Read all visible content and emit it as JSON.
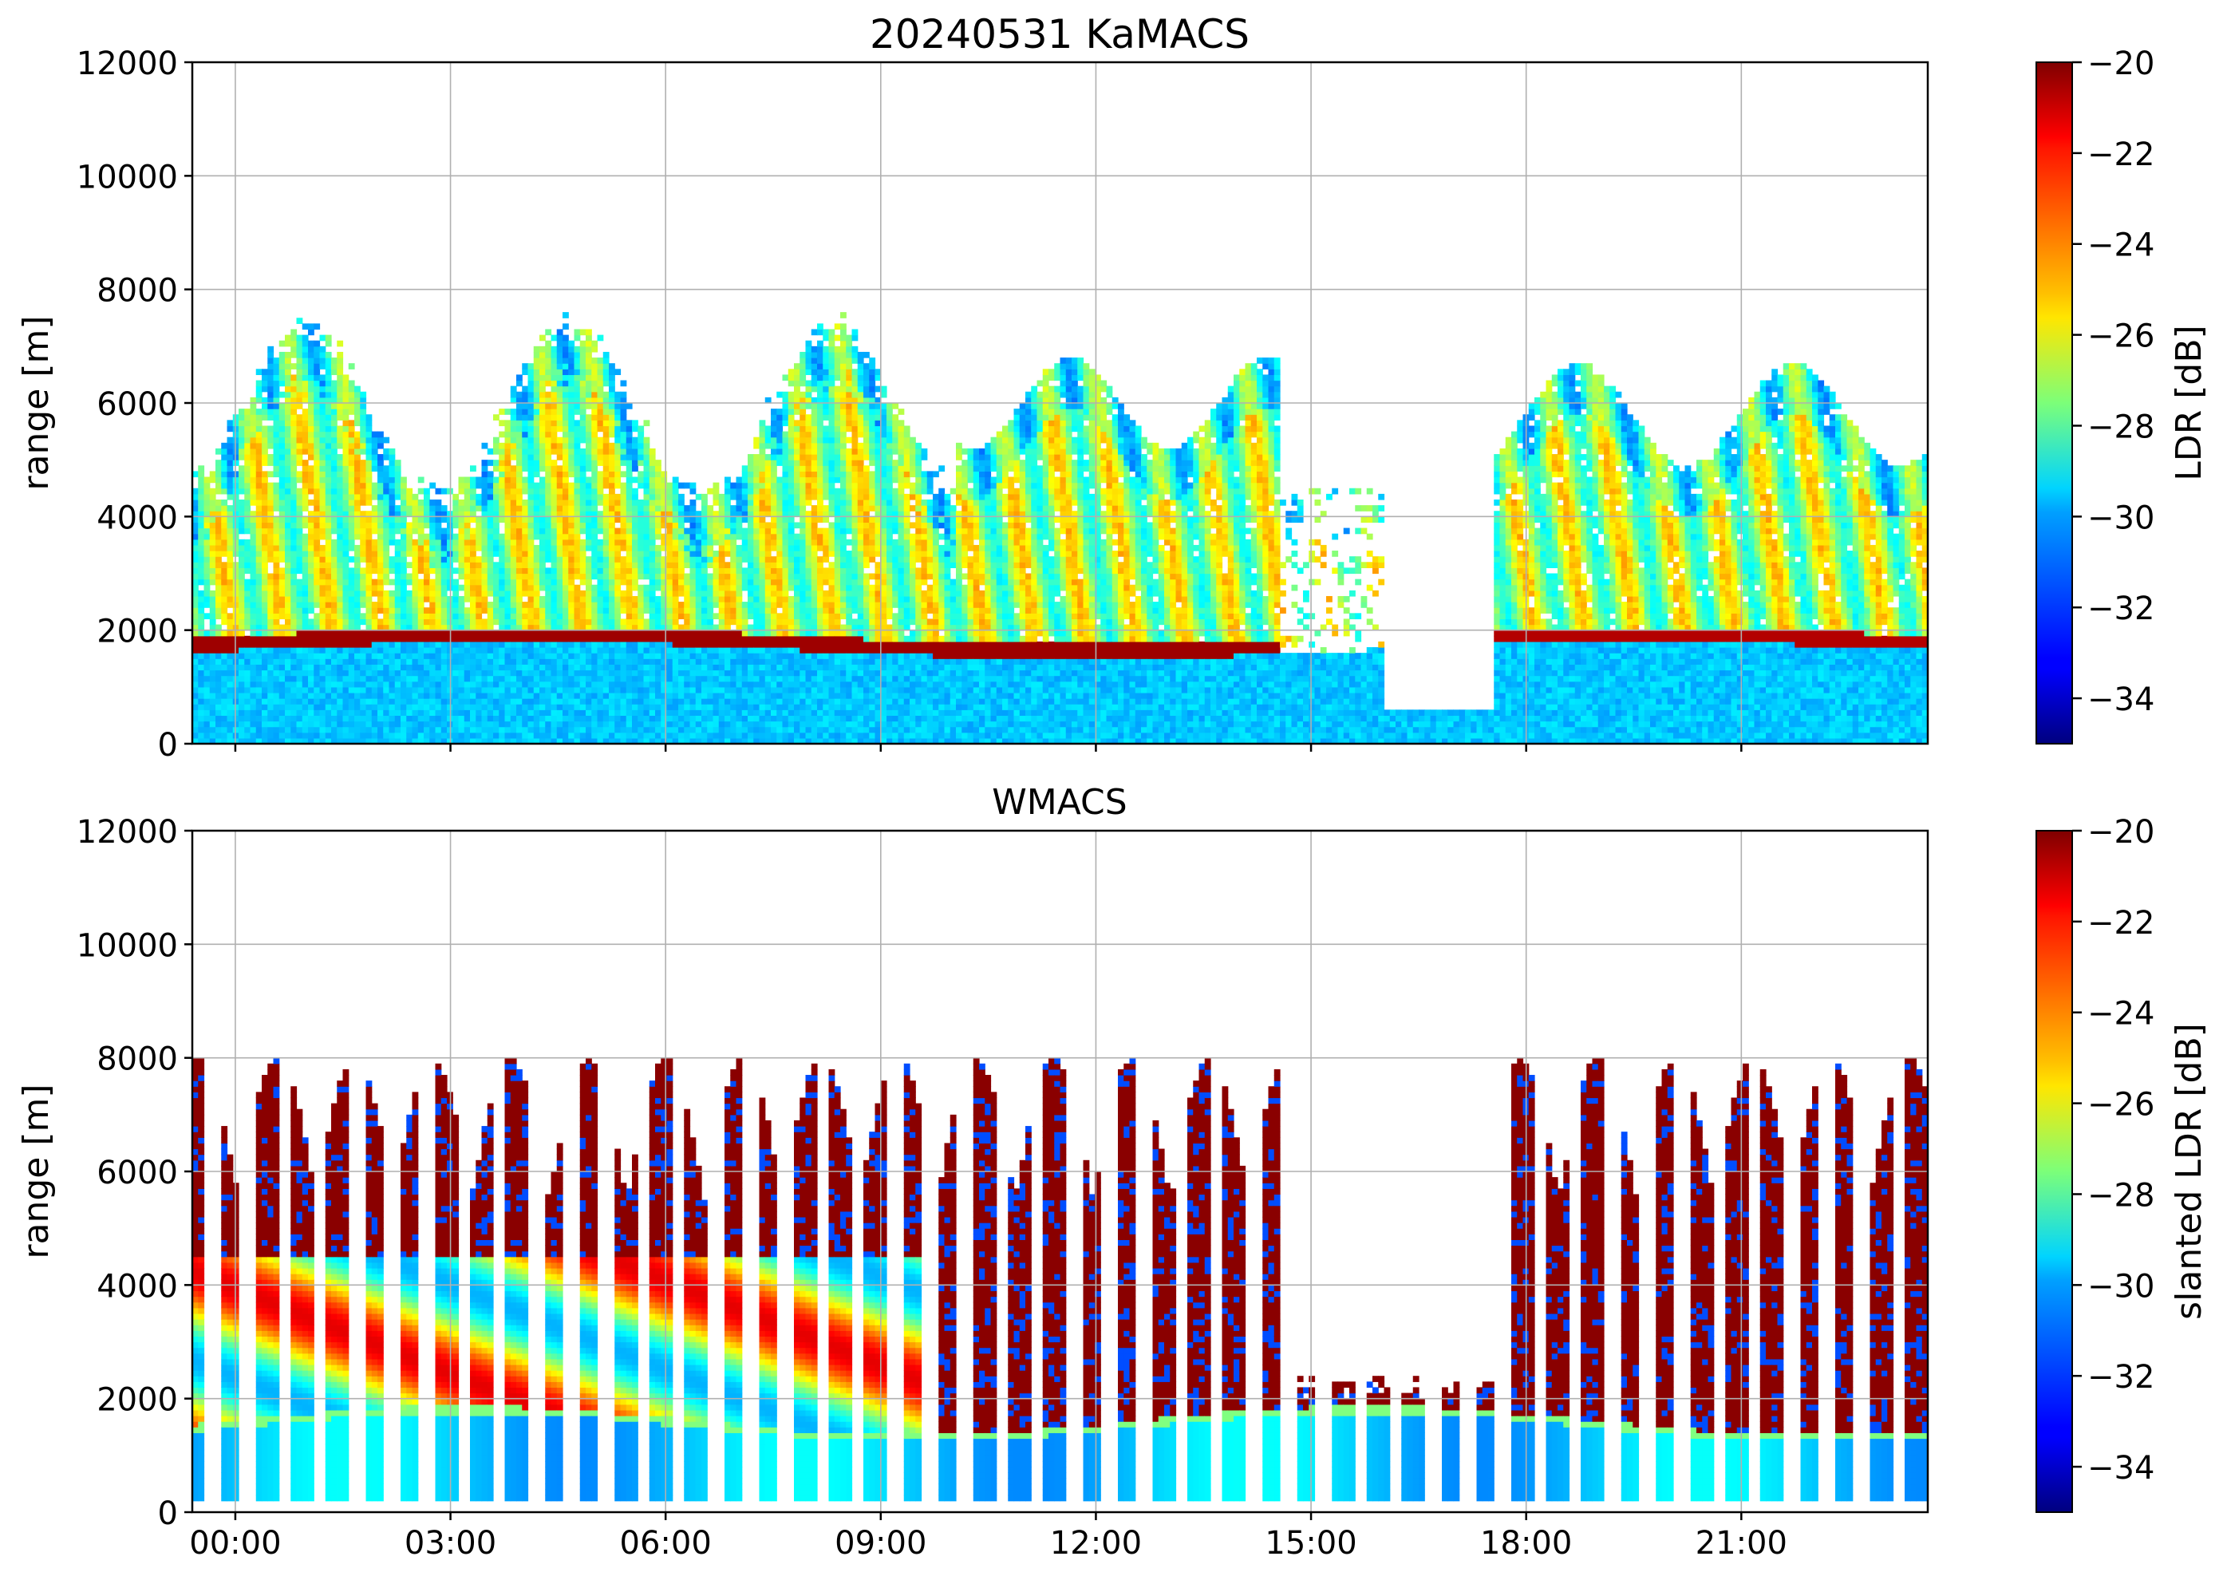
{
  "chart_data": [
    {
      "type": "heatmap",
      "title": "20240531 KaMACS",
      "xlabel": "",
      "ylabel": "range [m]",
      "ylim": [
        0,
        12000
      ],
      "yticks": [
        "0",
        "2000",
        "4000",
        "6000",
        "8000",
        "10000",
        "12000"
      ],
      "xticks": [
        "00:00",
        "03:00",
        "06:00",
        "09:00",
        "12:00",
        "15:00",
        "18:00",
        "21:00"
      ],
      "xtick_labels_visible": false,
      "grid": true,
      "colormap": "jet",
      "colorbar": {
        "label": "LDR [dB]",
        "range": [
          -35,
          -20
        ],
        "ticks": [
          "−20",
          "−22",
          "−24",
          "−26",
          "−28",
          "−30",
          "−32",
          "−34"
        ]
      }
    },
    {
      "type": "heatmap",
      "title": "WMACS",
      "xlabel": "",
      "ylabel": "range [m]",
      "ylim": [
        0,
        12000
      ],
      "yticks": [
        "0",
        "2000",
        "4000",
        "6000",
        "8000",
        "10000",
        "12000"
      ],
      "xticks": [
        "00:00",
        "03:00",
        "06:00",
        "09:00",
        "12:00",
        "15:00",
        "18:00",
        "21:00"
      ],
      "xtick_labels_visible": true,
      "grid": true,
      "colormap": "jet",
      "colorbar": {
        "label": "slanted LDR [dB]",
        "range": [
          -35,
          -20
        ],
        "ticks": [
          "−20",
          "−22",
          "−24",
          "−26",
          "−28",
          "−30",
          "−32",
          "−34"
        ]
      }
    }
  ]
}
